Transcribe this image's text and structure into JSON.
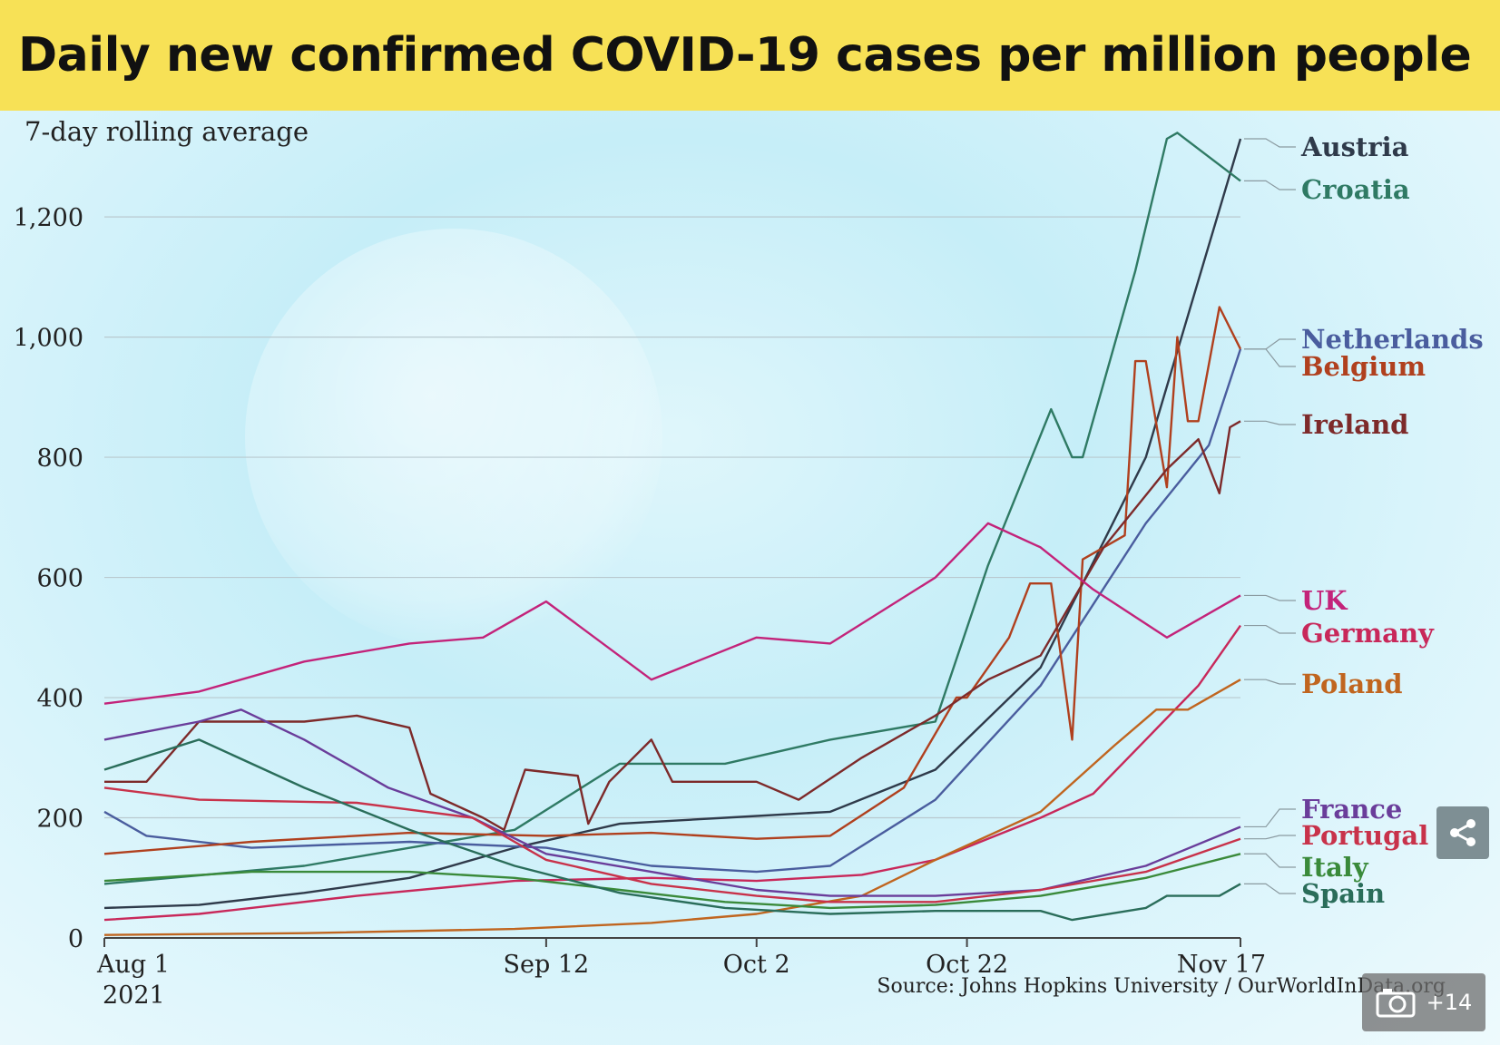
{
  "title": "Daily new confirmed COVID-19 cases per million people",
  "subtitle": "7-day rolling average",
  "source": "Source: Johns Hopkins University / OurWorldInData.org",
  "gallery_count": "+14",
  "chart_data": {
    "type": "line",
    "title": "Daily new confirmed COVID-19 cases per million people",
    "subtitle": "7-day rolling average",
    "xlabel": "",
    "ylabel": "",
    "x_start": "2021-08-01",
    "x_end": "2021-11-17",
    "x_ticks": [
      {
        "date": "2021-08-01",
        "label": "Aug 1",
        "label2": "2021"
      },
      {
        "date": "2021-09-12",
        "label": "Sep 12",
        "label2": ""
      },
      {
        "date": "2021-10-02",
        "label": "Oct 2",
        "label2": ""
      },
      {
        "date": "2021-10-22",
        "label": "Oct 22",
        "label2": ""
      },
      {
        "date": "2021-11-17",
        "label": "Nov 17",
        "label2": ""
      }
    ],
    "y_ticks": [
      {
        "v": 0,
        "label": "0"
      },
      {
        "v": 200,
        "label": "200"
      },
      {
        "v": 400,
        "label": "400"
      },
      {
        "v": 600,
        "label": "600"
      },
      {
        "v": 800,
        "label": "800"
      },
      {
        "v": 1000,
        "label": "1,000"
      },
      {
        "v": 1200,
        "label": "1,200"
      }
    ],
    "ylim": [
      0,
      1380
    ],
    "grid": true,
    "legend": "direct labels right",
    "series": [
      {
        "name": "Austria",
        "color": "#2f3a4a",
        "points": [
          [
            "2021-08-01",
            50
          ],
          [
            "2021-08-10",
            55
          ],
          [
            "2021-08-20",
            75
          ],
          [
            "2021-08-30",
            100
          ],
          [
            "2021-09-09",
            150
          ],
          [
            "2021-09-19",
            190
          ],
          [
            "2021-09-29",
            200
          ],
          [
            "2021-10-09",
            210
          ],
          [
            "2021-10-19",
            280
          ],
          [
            "2021-10-29",
            450
          ],
          [
            "2021-11-08",
            800
          ],
          [
            "2021-11-17",
            1330
          ]
        ]
      },
      {
        "name": "Croatia",
        "color": "#2f7a64",
        "points": [
          [
            "2021-08-01",
            90
          ],
          [
            "2021-08-20",
            120
          ],
          [
            "2021-09-09",
            180
          ],
          [
            "2021-09-19",
            290
          ],
          [
            "2021-09-29",
            290
          ],
          [
            "2021-10-09",
            330
          ],
          [
            "2021-10-19",
            360
          ],
          [
            "2021-10-24",
            620
          ],
          [
            "2021-10-30",
            880
          ],
          [
            "2021-11-01",
            800
          ],
          [
            "2021-11-02",
            800
          ],
          [
            "2021-11-07",
            1110
          ],
          [
            "2021-11-10",
            1330
          ],
          [
            "2021-11-11",
            1340
          ],
          [
            "2021-11-14",
            1300
          ],
          [
            "2021-11-17",
            1260
          ]
        ]
      },
      {
        "name": "Netherlands",
        "color": "#4a5d9e",
        "points": [
          [
            "2021-08-01",
            210
          ],
          [
            "2021-08-05",
            170
          ],
          [
            "2021-08-15",
            150
          ],
          [
            "2021-08-30",
            160
          ],
          [
            "2021-09-12",
            150
          ],
          [
            "2021-09-22",
            120
          ],
          [
            "2021-10-02",
            110
          ],
          [
            "2021-10-09",
            120
          ],
          [
            "2021-10-19",
            230
          ],
          [
            "2021-10-29",
            420
          ],
          [
            "2021-11-08",
            690
          ],
          [
            "2021-11-14",
            820
          ],
          [
            "2021-11-17",
            980
          ]
        ]
      },
      {
        "name": "Belgium",
        "color": "#b0401e",
        "points": [
          [
            "2021-08-01",
            140
          ],
          [
            "2021-08-15",
            160
          ],
          [
            "2021-08-30",
            175
          ],
          [
            "2021-09-12",
            170
          ],
          [
            "2021-09-22",
            175
          ],
          [
            "2021-10-02",
            165
          ],
          [
            "2021-10-09",
            170
          ],
          [
            "2021-10-16",
            250
          ],
          [
            "2021-10-21",
            400
          ],
          [
            "2021-10-22",
            400
          ],
          [
            "2021-10-26",
            500
          ],
          [
            "2021-10-28",
            590
          ],
          [
            "2021-10-30",
            590
          ],
          [
            "2021-11-01",
            330
          ],
          [
            "2021-11-02",
            630
          ],
          [
            "2021-11-06",
            670
          ],
          [
            "2021-11-07",
            960
          ],
          [
            "2021-11-08",
            960
          ],
          [
            "2021-11-10",
            750
          ],
          [
            "2021-11-11",
            1000
          ],
          [
            "2021-11-12",
            860
          ],
          [
            "2021-11-13",
            860
          ],
          [
            "2021-11-15",
            1050
          ],
          [
            "2021-11-17",
            980
          ]
        ]
      },
      {
        "name": "Ireland",
        "color": "#7d2a2a",
        "points": [
          [
            "2021-08-01",
            260
          ],
          [
            "2021-08-05",
            260
          ],
          [
            "2021-08-10",
            360
          ],
          [
            "2021-08-20",
            360
          ],
          [
            "2021-08-25",
            370
          ],
          [
            "2021-08-30",
            350
          ],
          [
            "2021-09-01",
            240
          ],
          [
            "2021-09-06",
            200
          ],
          [
            "2021-09-08",
            180
          ],
          [
            "2021-09-10",
            280
          ],
          [
            "2021-09-15",
            270
          ],
          [
            "2021-09-16",
            190
          ],
          [
            "2021-09-18",
            260
          ],
          [
            "2021-09-22",
            330
          ],
          [
            "2021-09-24",
            260
          ],
          [
            "2021-10-02",
            260
          ],
          [
            "2021-10-06",
            230
          ],
          [
            "2021-10-12",
            300
          ],
          [
            "2021-10-19",
            370
          ],
          [
            "2021-10-24",
            430
          ],
          [
            "2021-10-29",
            470
          ],
          [
            "2021-11-04",
            650
          ],
          [
            "2021-11-10",
            780
          ],
          [
            "2021-11-13",
            830
          ],
          [
            "2021-11-15",
            740
          ],
          [
            "2021-11-16",
            850
          ],
          [
            "2021-11-17",
            860
          ]
        ]
      },
      {
        "name": "UK",
        "color": "#c3237a",
        "points": [
          [
            "2021-08-01",
            390
          ],
          [
            "2021-08-10",
            410
          ],
          [
            "2021-08-20",
            460
          ],
          [
            "2021-08-30",
            490
          ],
          [
            "2021-09-06",
            500
          ],
          [
            "2021-09-12",
            560
          ],
          [
            "2021-09-22",
            430
          ],
          [
            "2021-10-02",
            500
          ],
          [
            "2021-10-09",
            490
          ],
          [
            "2021-10-19",
            600
          ],
          [
            "2021-10-24",
            690
          ],
          [
            "2021-10-29",
            650
          ],
          [
            "2021-11-03",
            580
          ],
          [
            "2021-11-10",
            500
          ],
          [
            "2021-11-17",
            570
          ]
        ]
      },
      {
        "name": "Germany",
        "color": "#c8285a",
        "points": [
          [
            "2021-08-01",
            30
          ],
          [
            "2021-08-10",
            40
          ],
          [
            "2021-08-25",
            70
          ],
          [
            "2021-09-09",
            95
          ],
          [
            "2021-09-22",
            100
          ],
          [
            "2021-10-02",
            95
          ],
          [
            "2021-10-12",
            105
          ],
          [
            "2021-10-19",
            130
          ],
          [
            "2021-10-29",
            200
          ],
          [
            "2021-11-03",
            240
          ],
          [
            "2021-11-08",
            330
          ],
          [
            "2021-11-13",
            420
          ],
          [
            "2021-11-17",
            520
          ]
        ]
      },
      {
        "name": "Poland",
        "color": "#c0651f",
        "points": [
          [
            "2021-08-01",
            5
          ],
          [
            "2021-08-20",
            8
          ],
          [
            "2021-09-09",
            15
          ],
          [
            "2021-09-22",
            25
          ],
          [
            "2021-10-02",
            40
          ],
          [
            "2021-10-12",
            70
          ],
          [
            "2021-10-19",
            130
          ],
          [
            "2021-10-29",
            210
          ],
          [
            "2021-11-05",
            320
          ],
          [
            "2021-11-09",
            380
          ],
          [
            "2021-11-12",
            380
          ],
          [
            "2021-11-17",
            430
          ]
        ]
      },
      {
        "name": "France",
        "color": "#6a3d9a",
        "points": [
          [
            "2021-08-01",
            330
          ],
          [
            "2021-08-10",
            360
          ],
          [
            "2021-08-14",
            380
          ],
          [
            "2021-08-20",
            330
          ],
          [
            "2021-08-28",
            250
          ],
          [
            "2021-09-05",
            200
          ],
          [
            "2021-09-12",
            140
          ],
          [
            "2021-09-22",
            110
          ],
          [
            "2021-10-02",
            80
          ],
          [
            "2021-10-09",
            70
          ],
          [
            "2021-10-19",
            70
          ],
          [
            "2021-10-29",
            80
          ],
          [
            "2021-11-08",
            120
          ],
          [
            "2021-11-17",
            185
          ]
        ]
      },
      {
        "name": "Portugal",
        "color": "#c8324a",
        "points": [
          [
            "2021-08-01",
            250
          ],
          [
            "2021-08-10",
            230
          ],
          [
            "2021-08-25",
            225
          ],
          [
            "2021-09-05",
            200
          ],
          [
            "2021-09-12",
            130
          ],
          [
            "2021-09-22",
            90
          ],
          [
            "2021-10-02",
            70
          ],
          [
            "2021-10-09",
            60
          ],
          [
            "2021-10-19",
            60
          ],
          [
            "2021-10-29",
            80
          ],
          [
            "2021-11-08",
            110
          ],
          [
            "2021-11-17",
            165
          ]
        ]
      },
      {
        "name": "Italy",
        "color": "#3a8a3a",
        "points": [
          [
            "2021-08-01",
            95
          ],
          [
            "2021-08-15",
            110
          ],
          [
            "2021-08-30",
            110
          ],
          [
            "2021-09-09",
            100
          ],
          [
            "2021-09-19",
            80
          ],
          [
            "2021-09-29",
            60
          ],
          [
            "2021-10-09",
            50
          ],
          [
            "2021-10-19",
            55
          ],
          [
            "2021-10-29",
            70
          ],
          [
            "2021-11-08",
            100
          ],
          [
            "2021-11-17",
            140
          ]
        ]
      },
      {
        "name": "Spain",
        "color": "#2a6d5a",
        "points": [
          [
            "2021-08-01",
            280
          ],
          [
            "2021-08-10",
            330
          ],
          [
            "2021-08-20",
            250
          ],
          [
            "2021-08-30",
            180
          ],
          [
            "2021-09-09",
            120
          ],
          [
            "2021-09-19",
            75
          ],
          [
            "2021-09-29",
            50
          ],
          [
            "2021-10-09",
            40
          ],
          [
            "2021-10-19",
            45
          ],
          [
            "2021-10-29",
            45
          ],
          [
            "2021-11-01",
            30
          ],
          [
            "2021-11-08",
            50
          ],
          [
            "2021-11-10",
            70
          ],
          [
            "2021-11-15",
            70
          ],
          [
            "2021-11-17",
            90
          ]
        ]
      }
    ]
  }
}
